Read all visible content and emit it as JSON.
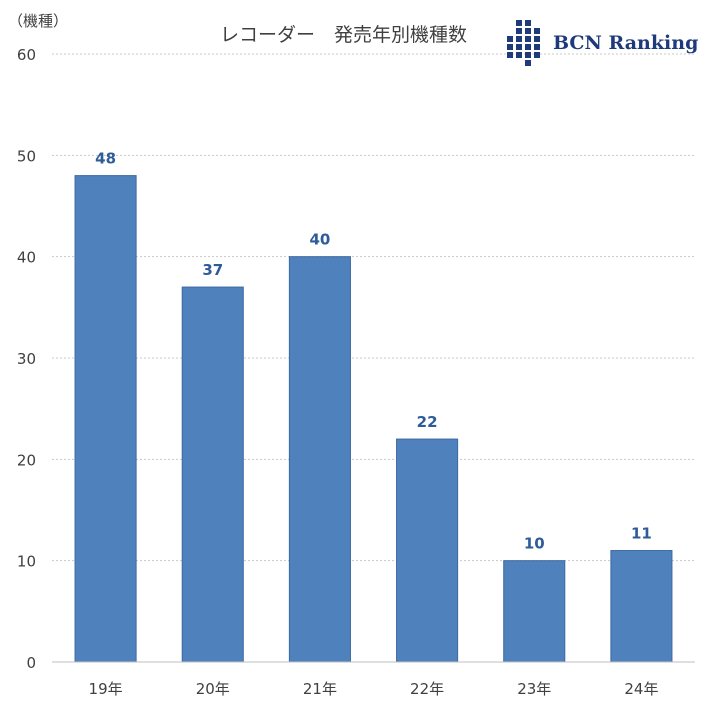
{
  "header": {
    "title": "レコーダー　発売年別機種数",
    "y_unit_label": "（機種）"
  },
  "logo": {
    "text": "BCN Ranking",
    "color": "#1f3a7a"
  },
  "colors": {
    "bar": "#4f81bd",
    "bar_border": "#3d6aa3",
    "data_label": "#2e5c99",
    "axis_text": "#404040",
    "grid": "#c8c8c8"
  },
  "chart_data": {
    "type": "bar",
    "categories": [
      "19年",
      "20年",
      "21年",
      "22年",
      "23年",
      "24年"
    ],
    "values": [
      48,
      37,
      40,
      22,
      10,
      11
    ],
    "title": "レコーダー　発売年別機種数",
    "xlabel": "",
    "ylabel": "（機種）",
    "ylim": [
      0,
      60
    ],
    "yticks": [
      0,
      10,
      20,
      30,
      40,
      50,
      60
    ],
    "grid": true,
    "legend": "none"
  }
}
